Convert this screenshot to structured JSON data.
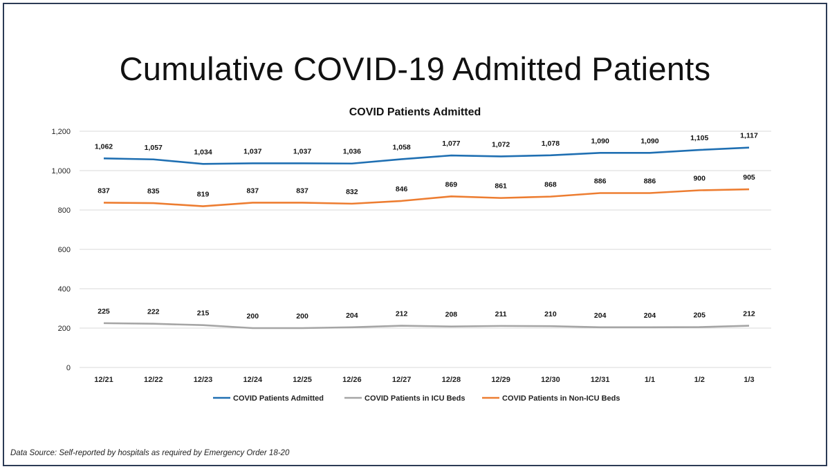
{
  "slide": {
    "title": "Cumulative COVID-19 Admitted Patients",
    "source_note": "Data Source: Self-reported by hospitals as required by Emergency Order 18-20"
  },
  "chart_data": {
    "type": "line",
    "title": "COVID Patients Admitted",
    "xlabel": "",
    "ylabel": "",
    "categories": [
      "12/21",
      "12/22",
      "12/23",
      "12/24",
      "12/25",
      "12/26",
      "12/27",
      "12/28",
      "12/29",
      "12/30",
      "12/31",
      "1/1",
      "1/2",
      "1/3"
    ],
    "ylim": [
      0,
      1200
    ],
    "yticks": [
      0,
      200,
      400,
      600,
      800,
      1000,
      1200
    ],
    "ytick_labels": [
      "0",
      "200",
      "400",
      "600",
      "800",
      "1,000",
      "1,200"
    ],
    "grid": true,
    "legend_position": "bottom",
    "series": [
      {
        "name": "COVID Patients Admitted",
        "color": "#1f6fb2",
        "values": [
          1062,
          1057,
          1034,
          1037,
          1037,
          1036,
          1058,
          1077,
          1072,
          1078,
          1090,
          1090,
          1105,
          1117
        ],
        "labels": [
          "1,062",
          "1,057",
          "1,034",
          "1,037",
          "1,037",
          "1,036",
          "1,058",
          "1,077",
          "1,072",
          "1,078",
          "1,090",
          "1,090",
          "1,105",
          "1,117"
        ]
      },
      {
        "name": "COVID Patients in ICU Beds",
        "color": "#a5a5a5",
        "values": [
          225,
          222,
          215,
          200,
          200,
          204,
          212,
          208,
          211,
          210,
          204,
          204,
          205,
          212
        ],
        "labels": [
          "225",
          "222",
          "215",
          "200",
          "200",
          "204",
          "212",
          "208",
          "211",
          "210",
          "204",
          "204",
          "205",
          "212"
        ]
      },
      {
        "name": "COVID Patients in Non-ICU Beds",
        "color": "#ed7d31",
        "values": [
          837,
          835,
          819,
          837,
          837,
          832,
          846,
          869,
          861,
          868,
          886,
          886,
          900,
          905
        ],
        "labels": [
          "837",
          "835",
          "819",
          "837",
          "837",
          "832",
          "846",
          "869",
          "861",
          "868",
          "886",
          "886",
          "900",
          "905"
        ]
      }
    ]
  }
}
